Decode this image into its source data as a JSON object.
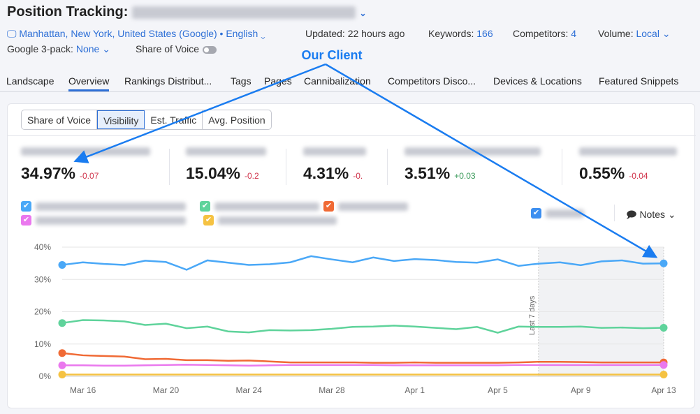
{
  "header": {
    "title": "Position Tracking:",
    "location": "Manhattan, New York, United States (Google) • English",
    "updated": "Updated: 22 hours ago",
    "keywords_label": "Keywords:",
    "keywords": "166",
    "competitors_label": "Competitors:",
    "competitors": "4",
    "volume_label": "Volume:",
    "volume": "Local",
    "pack_label": "Google 3-pack:",
    "pack": "None",
    "sov_label": "Share of Voice"
  },
  "tabs": [
    "Landscape",
    "Overview",
    "Rankings Distribut...",
    "Tags",
    "Pages",
    "Cannibalization",
    "Competitors Disco...",
    "Devices & Locations",
    "Featured Snippets"
  ],
  "segments": [
    "Share of Voice",
    "Visibility",
    "Est. Traffic",
    "Avg. Position"
  ],
  "kpis": [
    {
      "value": "34.97%",
      "delta": "-0.07"
    },
    {
      "value": "15.04%",
      "delta": "-0.2"
    },
    {
      "value": "4.31%",
      "delta": "-0."
    },
    {
      "value": "3.51%",
      "delta": "+0.03"
    },
    {
      "value": "0.55%",
      "delta": "-0.04"
    }
  ],
  "notes_label": "Notes",
  "annotation": "Our Client",
  "colors": {
    "accent": "#2d6fd6",
    "annotation": "#1a7cf0"
  },
  "chart_data": {
    "type": "line",
    "x": [
      "Mar 15",
      "Mar 16",
      "Mar 17",
      "Mar 18",
      "Mar 19",
      "Mar 20",
      "Mar 21",
      "Mar 22",
      "Mar 23",
      "Mar 24",
      "Mar 25",
      "Mar 26",
      "Mar 27",
      "Mar 28",
      "Mar 29",
      "Mar 30",
      "Mar 31",
      "Apr 1",
      "Apr 2",
      "Apr 3",
      "Apr 4",
      "Apr 5",
      "Apr 6",
      "Apr 7",
      "Apr 8",
      "Apr 9",
      "Apr 10",
      "Apr 11",
      "Apr 12",
      "Apr 13"
    ],
    "xticks": [
      "Mar 16",
      "Mar 20",
      "Mar 24",
      "Mar 28",
      "Apr 1",
      "Apr 5",
      "Apr 9",
      "Apr 13"
    ],
    "yticks": [
      "0%",
      "10%",
      "20%",
      "30%",
      "40%"
    ],
    "ylim": [
      0,
      40
    ],
    "grid": true,
    "highlight_label": "Last 7 days",
    "series": [
      {
        "color": "#4aa8f7",
        "values": [
          34.5,
          35.3,
          34.8,
          34.5,
          35.8,
          35.4,
          33.0,
          35.9,
          35.2,
          34.5,
          34.7,
          35.3,
          37.2,
          36.2,
          35.3,
          36.8,
          35.7,
          36.3,
          36.0,
          35.4,
          35.2,
          36.2,
          34.2,
          34.9,
          35.3,
          34.4,
          35.6,
          35.9,
          34.9,
          34.97
        ]
      },
      {
        "color": "#5fd39b",
        "values": [
          16.5,
          17.4,
          17.3,
          17.0,
          15.9,
          16.3,
          14.9,
          15.4,
          13.9,
          13.6,
          14.3,
          14.2,
          14.3,
          14.7,
          15.3,
          15.4,
          15.7,
          15.4,
          15.0,
          14.6,
          15.3,
          13.5,
          15.4,
          15.3,
          15.3,
          15.4,
          15.0,
          15.1,
          14.9,
          15.04
        ]
      },
      {
        "color": "#f06a35",
        "values": [
          7.2,
          6.5,
          6.3,
          6.1,
          5.3,
          5.4,
          5.0,
          5.0,
          4.8,
          4.9,
          4.6,
          4.3,
          4.3,
          4.3,
          4.3,
          4.2,
          4.2,
          4.3,
          4.2,
          4.2,
          4.2,
          4.2,
          4.3,
          4.5,
          4.5,
          4.4,
          4.3,
          4.3,
          4.3,
          4.31
        ]
      },
      {
        "color": "#ea78ee",
        "values": [
          3.4,
          3.4,
          3.3,
          3.3,
          3.4,
          3.5,
          3.6,
          3.5,
          3.4,
          3.3,
          3.4,
          3.5,
          3.5,
          3.5,
          3.5,
          3.5,
          3.4,
          3.4,
          3.4,
          3.4,
          3.4,
          3.4,
          3.5,
          3.5,
          3.5,
          3.5,
          3.5,
          3.5,
          3.5,
          3.51
        ]
      },
      {
        "color": "#f5c242",
        "values": [
          0.55,
          0.55,
          0.55,
          0.55,
          0.55,
          0.55,
          0.55,
          0.55,
          0.55,
          0.55,
          0.55,
          0.55,
          0.55,
          0.55,
          0.55,
          0.55,
          0.55,
          0.55,
          0.55,
          0.55,
          0.55,
          0.55,
          0.55,
          0.55,
          0.55,
          0.55,
          0.55,
          0.55,
          0.55,
          0.55
        ]
      }
    ]
  }
}
